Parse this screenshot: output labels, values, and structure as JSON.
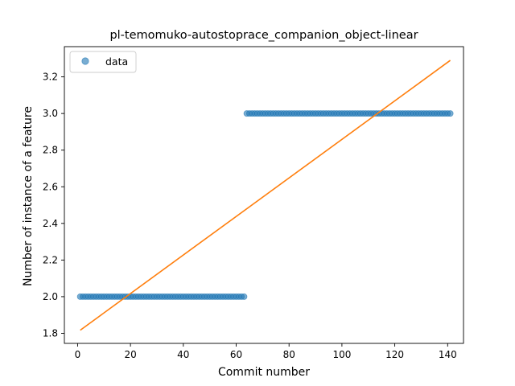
{
  "chart_data": {
    "type": "scatter",
    "title": "pl-temomuko-autostoprace_companion_object-linear",
    "xlabel": "Commit number",
    "ylabel": "Number of instance of a feature",
    "xlim": [
      -5,
      146
    ],
    "ylim": [
      1.745,
      3.365
    ],
    "xticks": [
      0,
      20,
      40,
      60,
      80,
      100,
      120,
      140
    ],
    "yticks": [
      1.8,
      2.0,
      2.2,
      2.4,
      2.6,
      2.8,
      3.0,
      3.2
    ],
    "grid": false,
    "legend": {
      "placement": "top-left",
      "entries": [
        "data"
      ]
    },
    "series": [
      {
        "name": "data",
        "kind": "scatter",
        "color": "#1f77b4",
        "segments": [
          {
            "x_from": 1,
            "x_to": 63,
            "y": 2.0
          },
          {
            "x_from": 64,
            "x_to": 141,
            "y": 3.0
          }
        ]
      },
      {
        "kind": "line",
        "color": "#ff7f0e",
        "x": [
          1,
          141
        ],
        "y": [
          1.817,
          3.29
        ]
      }
    ]
  }
}
